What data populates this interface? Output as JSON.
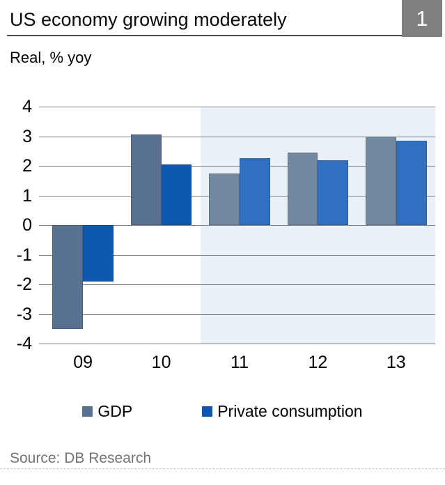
{
  "header": {
    "title": "US economy growing moderately",
    "figure_number": "1"
  },
  "subtitle": "Real, % yoy",
  "source": "Source: DB Research",
  "chart_data": {
    "type": "bar",
    "title": "US economy growing moderately",
    "unit_label": "Real, % yoy",
    "categories": [
      "09",
      "10",
      "11",
      "12",
      "13"
    ],
    "series": [
      {
        "name": "GDP",
        "values": [
          -3.5,
          3.05,
          1.75,
          2.45,
          3.0
        ],
        "color": "#587190",
        "forecast_color": "#7289a1"
      },
      {
        "name": "Private consumption",
        "values": [
          -1.9,
          2.05,
          2.25,
          2.2,
          2.85
        ],
        "color": "#0d57ae",
        "forecast_color": "#2f70c0"
      }
    ],
    "forecast_from_index": 2,
    "forecast_bg": "#e9f0f8",
    "ylim": [
      -4,
      4
    ],
    "ytick_step": 1,
    "bar_width_pct_of_group": 39,
    "grid": true,
    "gridline_color": "#808080",
    "legend_position": "bottom"
  }
}
